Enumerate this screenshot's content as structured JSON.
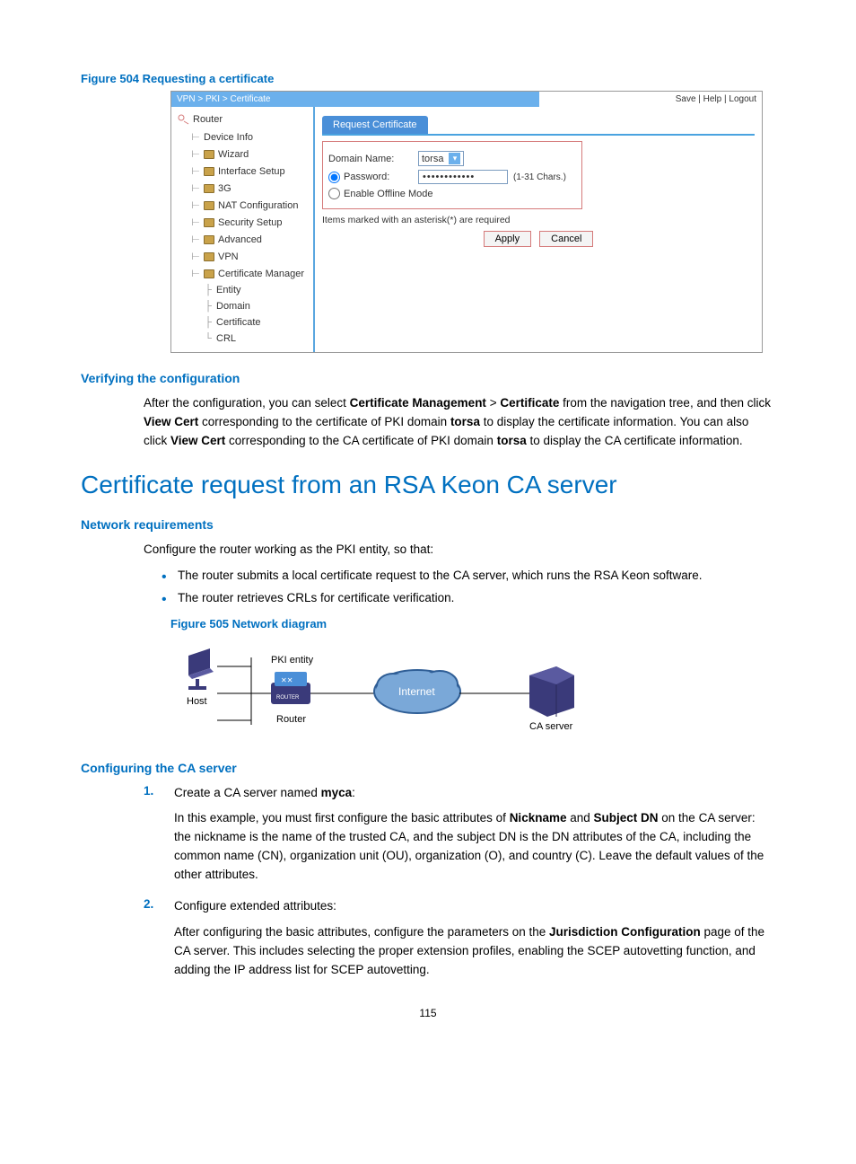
{
  "fig504": {
    "title": "Figure 504 Requesting a certificate",
    "breadcrumb": "VPN > PKI > Certificate",
    "toplinks": {
      "save": "Save",
      "help": "Help",
      "logout": "Logout"
    },
    "sidebar": {
      "root": "Router",
      "items": [
        {
          "label": "Device Info",
          "folder": false
        },
        {
          "label": "Wizard",
          "folder": true
        },
        {
          "label": "Interface Setup",
          "folder": true
        },
        {
          "label": "3G",
          "folder": true
        },
        {
          "label": "NAT Configuration",
          "folder": true
        },
        {
          "label": "Security Setup",
          "folder": true
        },
        {
          "label": "Advanced",
          "folder": true
        },
        {
          "label": "VPN",
          "folder": true
        },
        {
          "label": "Certificate Manager",
          "folder": true
        }
      ],
      "subitems": [
        {
          "label": "Entity"
        },
        {
          "label": "Domain"
        },
        {
          "label": "Certificate"
        },
        {
          "label": "CRL"
        }
      ]
    },
    "form": {
      "tab": "Request Certificate",
      "domain_label": "Domain Name:",
      "domain_value": "torsa",
      "password_label": "Password:",
      "password_value": "••••••••••••",
      "chars_hint": "(1-31 Chars.)",
      "offline_label": "Enable Offline Mode",
      "required_note": "Items marked with an asterisk(*) are required",
      "apply": "Apply",
      "cancel": "Cancel"
    }
  },
  "verify": {
    "title": "Verifying the configuration",
    "p": "After the configuration, you can select <b>Certificate Management</b> > <b>Certificate</b> from the navigation tree, and then click <b>View Cert</b> corresponding to the certificate of PKI domain <b>torsa</b> to display the certificate information. You can also click <b>View Cert</b> corresponding to the CA certificate of PKI domain <b>torsa</b> to display the CA certificate information."
  },
  "h2": "Certificate request from an RSA Keon CA server",
  "netreq": {
    "title": "Network requirements",
    "lead": "Configure the router working as the PKI entity, so that:",
    "bullets": [
      "The router submits a local certificate request to the CA server, which runs the RSA Keon software.",
      "The router retrieves CRLs for certificate verification."
    ]
  },
  "fig505": {
    "title": "Figure 505 Network diagram",
    "labels": {
      "pki": "PKI entity",
      "host": "Host",
      "router": "Router",
      "internet": "Internet",
      "ca": "CA server"
    },
    "colors": {
      "device": "#3a3a7a",
      "cloud_fill": "#7aa8d8",
      "cloud_stroke": "#2f5e96"
    }
  },
  "configca": {
    "title": "Configuring the CA server",
    "steps": [
      {
        "num": "1.",
        "lead": "Create a CA server named <b>myca</b>:",
        "sub": "In this example, you must first configure the basic attributes of <b>Nickname</b> and <b>Subject DN</b> on the CA server: the nickname is the name of the trusted CA, and the subject DN is the DN attributes of the CA, including the common name (CN), organization unit (OU), organization (O), and country (C). Leave the default values of the other attributes."
      },
      {
        "num": "2.",
        "lead": "Configure extended attributes:",
        "sub": "After configuring the basic attributes, configure the parameters on the <b>Jurisdiction Configuration</b> page of the CA server. This includes selecting the proper extension profiles, enabling the SCEP autovetting function, and adding the IP address list for SCEP autovetting."
      }
    ]
  },
  "pagenum": "115"
}
